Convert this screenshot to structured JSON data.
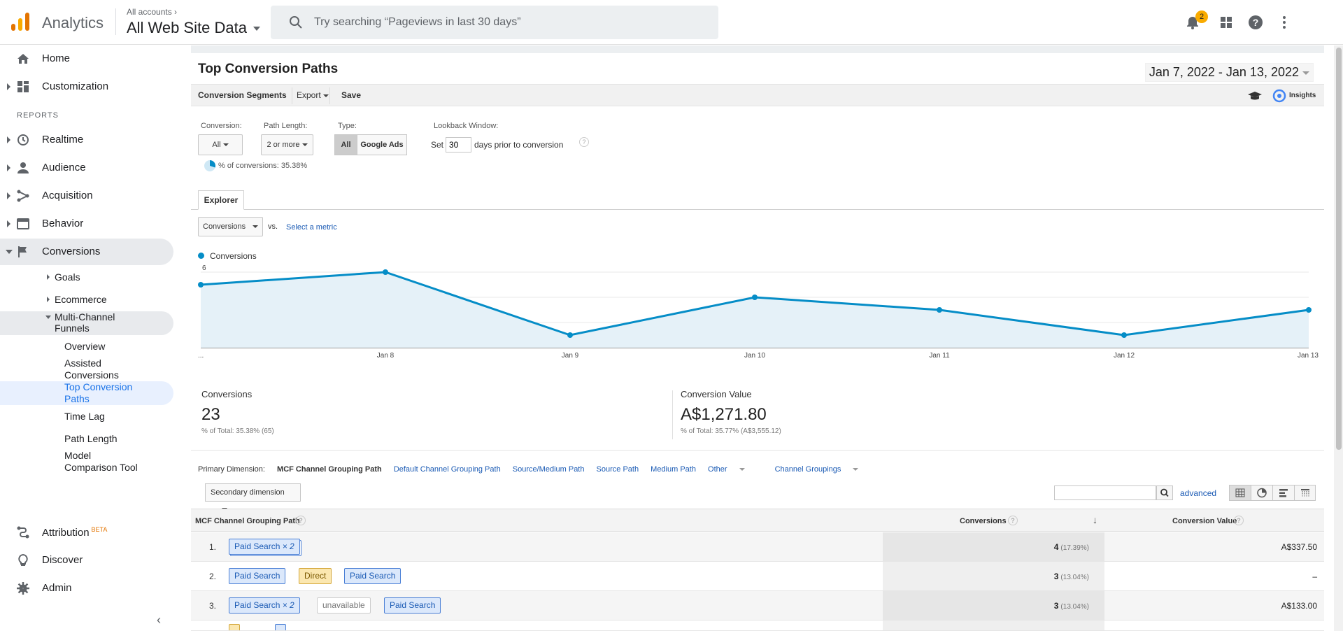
{
  "header": {
    "app_name": "Analytics",
    "account_small": "All accounts",
    "account_big": "All Web Site Data",
    "search_placeholder": "Try searching “Pageviews in last 30 days”",
    "notification_count": "2"
  },
  "sidebar": {
    "home": "Home",
    "customization": "Customization",
    "reports_header": "REPORTS",
    "realtime": "Realtime",
    "audience": "Audience",
    "acquisition": "Acquisition",
    "behavior": "Behavior",
    "conversions": "Conversions",
    "goals": "Goals",
    "ecommerce": "Ecommerce",
    "mcf_line1": "Multi-Channel",
    "mcf_line2": "Funnels",
    "overview": "Overview",
    "assisted_line1": "Assisted",
    "assisted_line2": "Conversions",
    "top_paths_line1": "Top Conversion",
    "top_paths_line2": "Paths",
    "time_lag": "Time Lag",
    "path_length": "Path Length",
    "model_line1": "Model",
    "model_line2": "Comparison Tool",
    "attribution": "Attribution",
    "attribution_badge": "BETA",
    "discover": "Discover",
    "admin": "Admin"
  },
  "report": {
    "title": "Top Conversion Paths",
    "date_range": "Jan 7, 2022 - Jan 13, 2022",
    "toolbar": {
      "segments": "Conversion Segments",
      "export": "Export",
      "save": "Save",
      "insights": "Insights"
    },
    "filters": {
      "conversion_label": "Conversion:",
      "conversion_value": "All",
      "path_length_label": "Path Length:",
      "path_length_value": "2 or more",
      "type_label": "Type:",
      "type_all": "All",
      "type_ads": "Google Ads",
      "lookback_label": "Lookback Window:",
      "lookback_set": "Set",
      "lookback_days": "30",
      "lookback_suffix": "days prior to conversion",
      "pct_conversions": "% of conversions: 35.38%"
    },
    "explorer_tab": "Explorer",
    "metric_select": "Conversions",
    "vs": "vs.",
    "select_metric": "Select a metric",
    "legend": "Conversions"
  },
  "chart_data": {
    "type": "area",
    "x": [
      "Jan 7",
      "Jan 8",
      "Jan 9",
      "Jan 10",
      "Jan 11",
      "Jan 12",
      "Jan 13"
    ],
    "x_tick_labels": [
      "...",
      "Jan 8",
      "Jan 9",
      "Jan 10",
      "Jan 11",
      "Jan 12",
      "Jan 13"
    ],
    "series": [
      {
        "name": "Conversions",
        "values": [
          5,
          6,
          1,
          4,
          3,
          1,
          3
        ]
      }
    ],
    "y_ticks": [
      "2",
      "4",
      "6"
    ],
    "ylim": [
      0,
      6
    ],
    "color": "#058dc7",
    "grid": true
  },
  "scorecards": {
    "conversions_label": "Conversions",
    "conversions_value": "23",
    "conversions_sub": "% of Total: 35.38% (65)",
    "value_label": "Conversion Value",
    "value_value": "A$1,271.80",
    "value_sub": "% of Total: 35.77% (A$3,555.12)"
  },
  "dimensions": {
    "label": "Primary Dimension:",
    "active": "MCF Channel Grouping Path",
    "options": [
      "Default Channel Grouping Path",
      "Source/Medium Path",
      "Source Path",
      "Medium Path",
      "Other",
      "Channel Groupings"
    ],
    "secondary": "Secondary dimension",
    "advanced": "advanced"
  },
  "table": {
    "col_path": "MCF Channel Grouping Path",
    "col_conversions": "Conversions",
    "col_value": "Conversion Value",
    "rows": [
      {
        "num": "1.",
        "conversions": "4",
        "pct": "(17.39%)",
        "value": "A$337.50"
      },
      {
        "num": "2.",
        "conversions": "3",
        "pct": "(13.04%)",
        "value": "–"
      },
      {
        "num": "3.",
        "conversions": "3",
        "pct": "(13.04%)",
        "value": "A$133.00"
      }
    ],
    "chips": {
      "paid_search": "Paid Search",
      "x2": "× 2",
      "direct": "Direct",
      "unavailable": "unavailable"
    }
  }
}
